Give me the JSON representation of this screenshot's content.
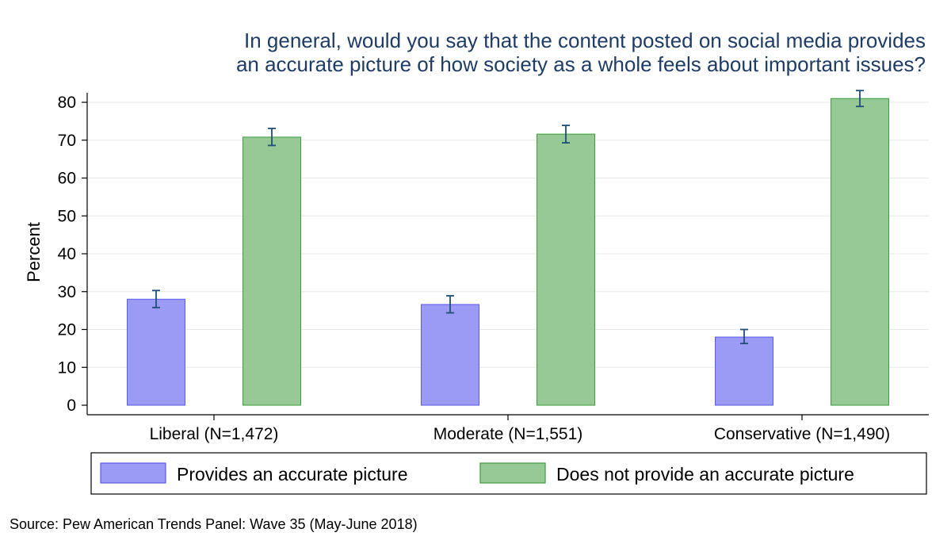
{
  "chart_data": {
    "type": "bar",
    "title": [
      "In general, would you say that the content posted on social media provides",
      "an accurate picture of how society as a whole feels about important issues?"
    ],
    "ylabel": "Percent",
    "xlabel": "",
    "ylim": [
      0,
      85
    ],
    "yticks": [
      0,
      10,
      20,
      30,
      40,
      50,
      60,
      70,
      80
    ],
    "grid": true,
    "categories": [
      "Liberal (N=1,472)",
      "Moderate (N=1,551)",
      "Conservative (N=1,490)"
    ],
    "series": [
      {
        "name": "Provides an accurate picture",
        "color": "#9b9bf5",
        "stroke": "#5a5ae6",
        "values": [
          28,
          26.6,
          18
        ],
        "error_low": [
          25.8,
          24.4,
          16.3
        ],
        "error_high": [
          30.3,
          28.9,
          20
        ]
      },
      {
        "name": "Does not provide an accurate picture",
        "color": "#97c997",
        "stroke": "#3e9e3e",
        "values": [
          70.8,
          71.6,
          81
        ],
        "error_low": [
          68.6,
          69.3,
          78.9
        ],
        "error_high": [
          73.1,
          73.9,
          83.1
        ]
      }
    ],
    "legend": {
      "position": "bottom",
      "entries": [
        "Provides an accurate picture",
        "Does not provide an accurate picture"
      ]
    },
    "source": "Source: Pew American Trends Panel: Wave 35 (May-June 2018)"
  }
}
